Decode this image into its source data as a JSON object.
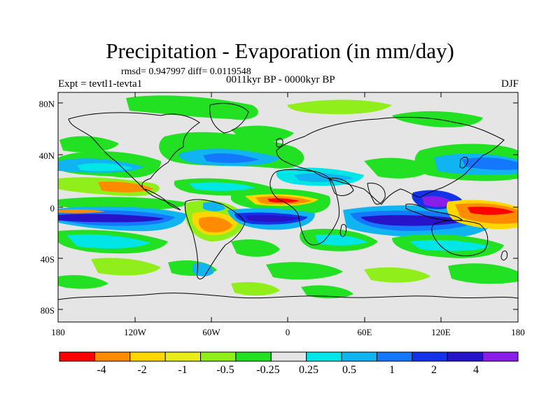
{
  "title": "Precipitation - Evaporation (in mm/day)",
  "stats": "rmsd= 0.947997 diff= 0.0119548",
  "expt": "Expt = tevtl1-tevta1",
  "period": "0011kyr BP - 0000kyr BP",
  "season": "DJF",
  "y_axis_labels": [
    "80N",
    "40N",
    "0",
    "40S",
    "80S"
  ],
  "x_axis_labels": [
    "180",
    "120W",
    "60W",
    "0",
    "60E",
    "120E",
    "180"
  ],
  "colorbar": {
    "colors": [
      "#ff0000",
      "#ff8c00",
      "#ffd700",
      "#e8ec1a",
      "#90ee1a",
      "#22e022",
      "#e5e5e5",
      "#00e5e5",
      "#10b4f0",
      "#1478ff",
      "#1432e8",
      "#2814c8",
      "#8a1ee8"
    ],
    "labels": [
      "-4",
      "-2",
      "-1",
      "-0.5",
      "-0.25",
      "0.25",
      "0.5",
      "1",
      "2",
      "4"
    ]
  },
  "legend_colors": {
    "ocean_background": "#e5e5e5",
    "coastline": "#000000"
  }
}
